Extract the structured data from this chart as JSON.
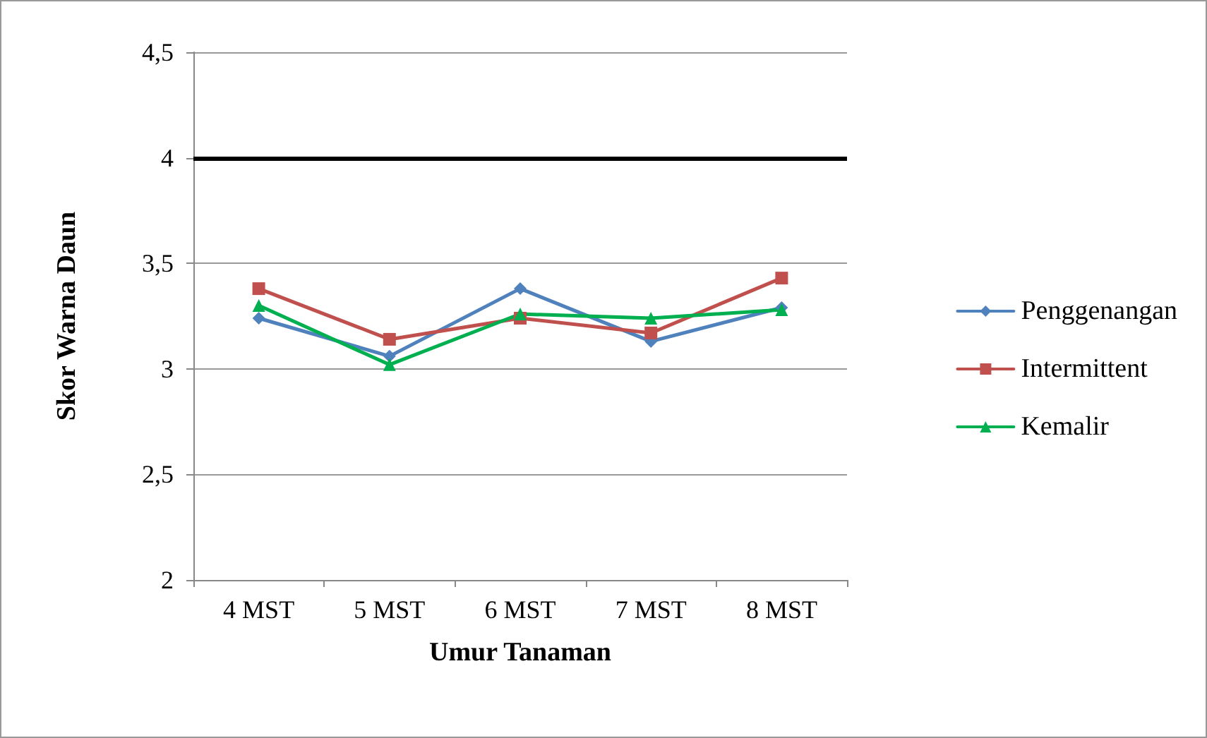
{
  "chart_data": {
    "type": "line",
    "xlabel": "Umur Tanaman",
    "ylabel": "Skor Warna Daun",
    "categories": [
      "4 MST",
      "5 MST",
      "6 MST",
      "7 MST",
      "8 MST"
    ],
    "series": [
      {
        "name": "Penggenangan",
        "color": "#4f81bd",
        "marker": "diamond",
        "values": [
          3.24,
          3.06,
          3.38,
          3.13,
          3.29
        ]
      },
      {
        "name": "Intermittent",
        "color": "#c0504d",
        "marker": "square",
        "values": [
          3.38,
          3.14,
          3.24,
          3.17,
          3.43
        ]
      },
      {
        "name": "Kemalir",
        "color": "#00b050",
        "marker": "triangle",
        "values": [
          3.3,
          3.02,
          3.26,
          3.24,
          3.28
        ]
      }
    ],
    "ylim": [
      2,
      4.5
    ],
    "yticks": [
      {
        "value": 2,
        "label": "2"
      },
      {
        "value": 2.5,
        "label": "2,5"
      },
      {
        "value": 3,
        "label": "3"
      },
      {
        "value": 3.5,
        "label": "3,5"
      },
      {
        "value": 4,
        "label": "4"
      },
      {
        "value": 4.5,
        "label": "4,5"
      }
    ],
    "grid": "y",
    "legend": "right",
    "ref_lines": [
      {
        "axis": "y",
        "value": 4,
        "color": "#000000",
        "line_style": "solid"
      }
    ]
  }
}
